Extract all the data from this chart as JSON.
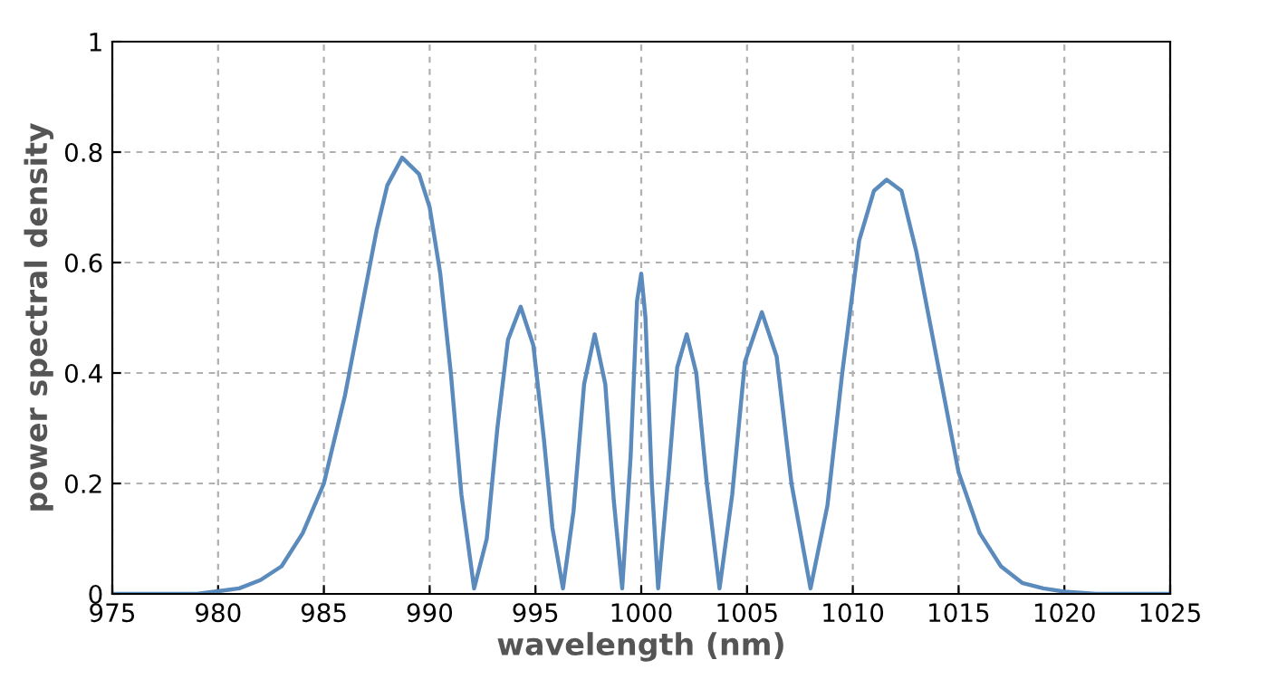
{
  "chart_data": {
    "type": "line",
    "xlabel": "wavelength (nm)",
    "ylabel": "power spectral density",
    "xlim": [
      975,
      1025
    ],
    "ylim": [
      0,
      1
    ],
    "xticks": [
      975,
      980,
      985,
      990,
      995,
      1000,
      1005,
      1010,
      1015,
      1020,
      1025
    ],
    "yticks": [
      0,
      0.2,
      0.4,
      0.6,
      0.8,
      1
    ],
    "grid": true,
    "line_style": "solid",
    "marker": "none",
    "series": [
      {
        "color": "#5b8abd",
        "x": [
          975,
          979,
          980,
          981,
          982,
          983,
          984,
          985,
          986,
          987,
          987.5,
          988,
          988.7,
          989.5,
          990,
          990.5,
          991,
          991.5,
          992.1,
          992.7,
          993.2,
          993.7,
          994.3,
          994.9,
          995.4,
          995.8,
          996.3,
          996.8,
          997.3,
          997.8,
          998.3,
          998.7,
          999.1,
          999.5,
          999.8,
          1000,
          1000.2,
          1000.5,
          1000.8,
          1001.3,
          1001.7,
          1002.15,
          1002.6,
          1003.1,
          1003.7,
          1004.3,
          1004.9,
          1005.7,
          1006.4,
          1007.1,
          1008.0,
          1008.8,
          1009.5,
          1010.3,
          1011,
          1011.6,
          1012.3,
          1013,
          1014,
          1015,
          1016,
          1017,
          1018,
          1019,
          1020,
          1021.5,
          1025
        ],
        "values": [
          0,
          0,
          0.005,
          0.01,
          0.025,
          0.05,
          0.11,
          0.2,
          0.36,
          0.56,
          0.66,
          0.74,
          0.79,
          0.76,
          0.7,
          0.58,
          0.4,
          0.18,
          0.01,
          0.1,
          0.3,
          0.46,
          0.52,
          0.45,
          0.28,
          0.12,
          0.01,
          0.15,
          0.38,
          0.47,
          0.38,
          0.17,
          0.01,
          0.25,
          0.53,
          0.58,
          0.5,
          0.2,
          0.01,
          0.22,
          0.41,
          0.47,
          0.4,
          0.2,
          0.01,
          0.18,
          0.42,
          0.51,
          0.43,
          0.2,
          0.01,
          0.16,
          0.4,
          0.64,
          0.73,
          0.75,
          0.73,
          0.62,
          0.42,
          0.22,
          0.11,
          0.05,
          0.02,
          0.01,
          0.004,
          0,
          0
        ]
      }
    ]
  }
}
